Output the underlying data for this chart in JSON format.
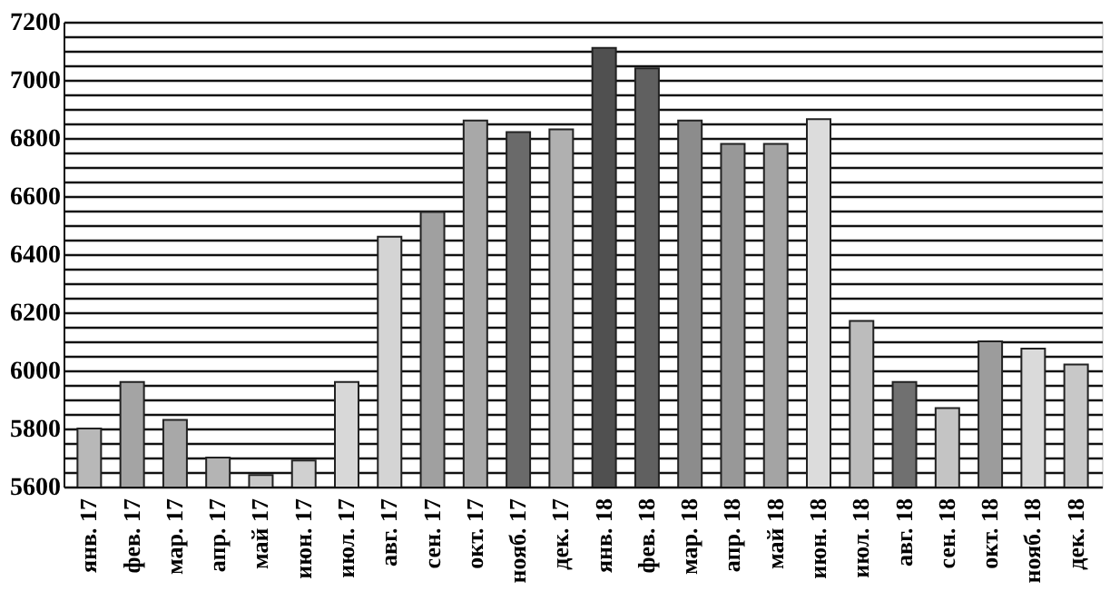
{
  "chart_data": {
    "type": "bar",
    "categories": [
      "янв. 17",
      "фев. 17",
      "мар. 17",
      "апр. 17",
      "май 17",
      "июн. 17",
      "июл. 17",
      "авг. 17",
      "сен. 17",
      "окт. 17",
      "нояб. 17",
      "дек. 17",
      "янв. 18",
      "фев. 18",
      "мар. 18",
      "апр. 18",
      "май 18",
      "июн. 18",
      "июл. 18",
      "авг. 18",
      "сен. 18",
      "окт. 18",
      "нояб. 18",
      "дек. 18"
    ],
    "values": [
      5800,
      5960,
      5830,
      5700,
      5640,
      5690,
      5960,
      6460,
      6545,
      6860,
      6820,
      6830,
      7110,
      7040,
      6860,
      6780,
      6780,
      6865,
      6170,
      5960,
      5870,
      6100,
      6075,
      6020
    ],
    "colors": [
      "#b8b8b8",
      "#a4a4a4",
      "#a8a8a8",
      "#b4b4b4",
      "#c8c8c8",
      "#d0d0d0",
      "#d8d8d8",
      "#d4d4d4",
      "#a0a0a0",
      "#a8a8a8",
      "#6a6a6a",
      "#b0b0b0",
      "#505050",
      "#606060",
      "#8c8c8c",
      "#989898",
      "#a4a4a4",
      "#dcdcdc",
      "#bcbcbc",
      "#707070",
      "#c4c4c4",
      "#9c9c9c",
      "#dadada",
      "#c8c8c8"
    ],
    "ylim": [
      5600,
      7200
    ],
    "yticks": [
      5600,
      {
        "value": 5650,
        "label": null
      },
      {
        "value": 5700,
        "label": null
      },
      {
        "value": 5750,
        "label": null
      },
      5800,
      {
        "value": 5850,
        "label": null
      },
      {
        "value": 5900,
        "label": null
      },
      {
        "value": 5950,
        "label": null
      },
      6000,
      {
        "value": 6050,
        "label": null
      },
      {
        "value": 6100,
        "label": null
      },
      {
        "value": 6150,
        "label": null
      },
      6200,
      {
        "value": 6250,
        "label": null
      },
      {
        "value": 6300,
        "label": null
      },
      {
        "value": 6350,
        "label": null
      },
      6400,
      {
        "value": 6450,
        "label": null
      },
      {
        "value": 6500,
        "label": null
      },
      {
        "value": 6550,
        "label": null
      },
      6600,
      {
        "value": 6650,
        "label": null
      },
      {
        "value": 6700,
        "label": null
      },
      {
        "value": 6750,
        "label": null
      },
      6800,
      {
        "value": 6850,
        "label": null
      },
      {
        "value": 6900,
        "label": null
      },
      {
        "value": 6950,
        "label": null
      },
      7000,
      {
        "value": 7050,
        "label": null
      },
      {
        "value": 7100,
        "label": null
      },
      {
        "value": 7150,
        "label": null
      },
      7200
    ],
    "grid": "y"
  }
}
